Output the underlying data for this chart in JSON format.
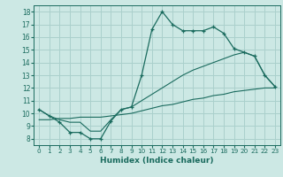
{
  "xlabel": "Humidex (Indice chaleur)",
  "xlim": [
    -0.5,
    23.5
  ],
  "ylim": [
    7.5,
    18.5
  ],
  "xticks": [
    0,
    1,
    2,
    3,
    4,
    5,
    6,
    7,
    8,
    9,
    10,
    11,
    12,
    13,
    14,
    15,
    16,
    17,
    18,
    19,
    20,
    21,
    22,
    23
  ],
  "yticks": [
    8,
    9,
    10,
    11,
    12,
    13,
    14,
    15,
    16,
    17,
    18
  ],
  "bg_color": "#cce8e4",
  "grid_color": "#aad0cc",
  "line_color": "#1a6b5e",
  "line1_x": [
    0,
    1,
    2,
    3,
    4,
    5,
    6,
    7,
    8,
    9,
    10,
    11,
    12,
    13,
    14,
    15,
    16,
    17,
    18,
    19,
    20,
    21,
    22,
    23
  ],
  "line1_y": [
    10.3,
    9.8,
    9.3,
    8.5,
    8.5,
    8.0,
    8.0,
    9.4,
    10.3,
    10.5,
    13.0,
    16.6,
    18.0,
    17.0,
    16.5,
    16.5,
    16.5,
    16.8,
    16.3,
    15.1,
    14.8,
    14.5,
    13.0,
    12.1
  ],
  "line2_x": [
    0,
    1,
    2,
    3,
    4,
    5,
    6,
    7,
    8,
    9,
    10,
    11,
    12,
    13,
    14,
    15,
    16,
    17,
    18,
    19,
    20,
    21,
    22,
    23
  ],
  "line2_y": [
    10.3,
    9.8,
    9.5,
    9.3,
    9.3,
    8.6,
    8.6,
    9.5,
    10.3,
    10.5,
    11.0,
    11.5,
    12.0,
    12.5,
    13.0,
    13.4,
    13.7,
    14.0,
    14.3,
    14.6,
    14.8,
    14.5,
    13.0,
    12.1
  ],
  "line3_x": [
    0,
    1,
    2,
    3,
    4,
    5,
    6,
    7,
    8,
    9,
    10,
    11,
    12,
    13,
    14,
    15,
    16,
    17,
    18,
    19,
    20,
    21,
    22,
    23
  ],
  "line3_y": [
    9.5,
    9.5,
    9.6,
    9.6,
    9.7,
    9.7,
    9.7,
    9.8,
    9.9,
    10.0,
    10.2,
    10.4,
    10.6,
    10.7,
    10.9,
    11.1,
    11.2,
    11.4,
    11.5,
    11.7,
    11.8,
    11.9,
    12.0,
    12.0
  ]
}
